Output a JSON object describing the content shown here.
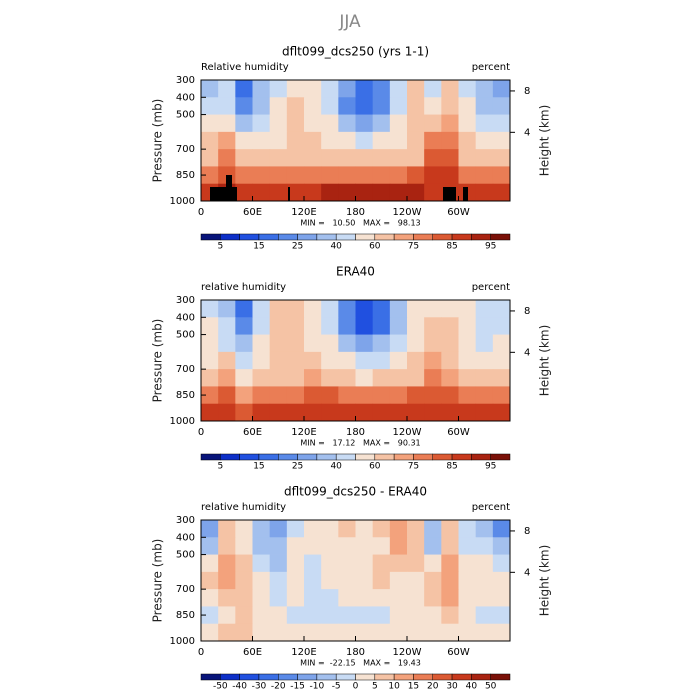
{
  "title": "JJA",
  "chart_data": [
    {
      "type": "contour",
      "title": "dflt099_dcs250 (yrs 1-1)",
      "subtitle_left": "Relative humidity",
      "subtitle_right": "percent",
      "ylabel": "Pressure (mb)",
      "y2label": "Height (km)",
      "stats": "MIN =   10.50   MAX =   98.13",
      "xlim": [
        0,
        360
      ],
      "xticks": [
        0,
        {
          "value": 60,
          "label": "60E"
        },
        {
          "value": 120,
          "label": "120E"
        },
        180,
        {
          "value": 240,
          "label": "120W"
        },
        {
          "value": 300,
          "label": "60W"
        }
      ],
      "ylim": [
        1000,
        300
      ],
      "yticks": [
        300,
        400,
        500,
        700,
        850,
        1000
      ],
      "y2ticks": [
        4,
        8
      ],
      "x": [
        10,
        30,
        50,
        70,
        90,
        110,
        130,
        150,
        170,
        190,
        210,
        230,
        250,
        270,
        290,
        310,
        330,
        350
      ],
      "y": [
        350,
        450,
        550,
        650,
        750,
        850,
        950
      ],
      "z": [
        [
          30,
          40,
          15,
          30,
          45,
          55,
          55,
          45,
          25,
          15,
          20,
          40,
          60,
          45,
          60,
          45,
          30,
          25
        ],
        [
          40,
          45,
          20,
          35,
          50,
          60,
          55,
          45,
          20,
          15,
          20,
          45,
          60,
          50,
          65,
          50,
          35,
          35
        ],
        [
          50,
          55,
          35,
          45,
          50,
          60,
          55,
          50,
          35,
          25,
          35,
          50,
          60,
          65,
          70,
          55,
          45,
          45
        ],
        [
          60,
          70,
          50,
          55,
          55,
          60,
          60,
          55,
          50,
          45,
          50,
          55,
          60,
          75,
          75,
          60,
          55,
          55
        ],
        [
          65,
          78,
          65,
          62,
          62,
          65,
          65,
          62,
          60,
          60,
          60,
          62,
          65,
          80,
          80,
          65,
          62,
          62
        ],
        [
          75,
          82,
          75,
          75,
          75,
          75,
          78,
          78,
          77,
          77,
          77,
          78,
          80,
          85,
          85,
          78,
          75,
          75
        ],
        [
          85,
          90,
          85,
          85,
          85,
          87,
          88,
          90,
          90,
          90,
          90,
          90,
          90,
          88,
          88,
          85,
          85,
          85
        ]
      ],
      "levels": [
        5,
        10,
        15,
        20,
        25,
        30,
        40,
        50,
        60,
        70,
        75,
        80,
        85,
        90,
        95
      ],
      "level_ticks": [
        5,
        15,
        25,
        40,
        60,
        75,
        85,
        95
      ],
      "colors": [
        "#08147a",
        "#0d2fc8",
        "#2050e0",
        "#3a6fe6",
        "#5a8ae8",
        "#7ea4ea",
        "#a3c0ee",
        "#c8dbf4",
        "#f6e2d2",
        "#f5c3a5",
        "#f3a27c",
        "#ea7d55",
        "#db5a33",
        "#c8391c",
        "#a92311",
        "#7a1007"
      ],
      "topography": true
    },
    {
      "type": "contour",
      "title": "ERA40",
      "subtitle_left": "relative humidity",
      "subtitle_right": "percent",
      "ylabel": "Pressure (mb)",
      "y2label": "Height (km)",
      "stats": "MIN =   17.12   MAX =   90.31",
      "xlim": [
        0,
        360
      ],
      "xticks": [
        0,
        {
          "value": 60,
          "label": "60E"
        },
        {
          "value": 120,
          "label": "120E"
        },
        180,
        {
          "value": 240,
          "label": "120W"
        },
        {
          "value": 300,
          "label": "60W"
        }
      ],
      "ylim": [
        1000,
        300
      ],
      "yticks": [
        300,
        400,
        500,
        700,
        850,
        1000
      ],
      "y2ticks": [
        4,
        8
      ],
      "x": [
        10,
        30,
        50,
        70,
        90,
        110,
        130,
        150,
        170,
        190,
        210,
        230,
        250,
        270,
        290,
        310,
        330,
        350
      ],
      "y": [
        350,
        450,
        550,
        650,
        750,
        850,
        950
      ],
      "z": [
        [
          45,
          35,
          15,
          40,
          60,
          60,
          55,
          45,
          20,
          12,
          15,
          30,
          55,
          55,
          55,
          50,
          40,
          45
        ],
        [
          50,
          40,
          20,
          45,
          60,
          60,
          55,
          45,
          20,
          12,
          18,
          35,
          55,
          60,
          60,
          55,
          40,
          45
        ],
        [
          50,
          45,
          30,
          50,
          60,
          60,
          58,
          50,
          35,
          25,
          30,
          45,
          55,
          65,
          60,
          55,
          45,
          50
        ],
        [
          55,
          60,
          45,
          55,
          60,
          60,
          62,
          55,
          50,
          45,
          45,
          55,
          60,
          70,
          62,
          58,
          55,
          55
        ],
        [
          65,
          72,
          58,
          62,
          65,
          65,
          70,
          65,
          60,
          58,
          60,
          62,
          65,
          75,
          70,
          65,
          62,
          62
        ],
        [
          78,
          80,
          70,
          75,
          75,
          78,
          80,
          80,
          78,
          78,
          78,
          78,
          80,
          82,
          80,
          78,
          78,
          78
        ],
        [
          85,
          85,
          80,
          85,
          85,
          87,
          88,
          88,
          88,
          88,
          88,
          87,
          87,
          85,
          85,
          85,
          85,
          85
        ]
      ],
      "levels": [
        5,
        10,
        15,
        20,
        25,
        30,
        40,
        50,
        60,
        70,
        75,
        80,
        85,
        90,
        95
      ],
      "level_ticks": [
        5,
        15,
        25,
        40,
        60,
        75,
        85,
        95
      ],
      "colors": [
        "#08147a",
        "#0d2fc8",
        "#2050e0",
        "#3a6fe6",
        "#5a8ae8",
        "#7ea4ea",
        "#a3c0ee",
        "#c8dbf4",
        "#f6e2d2",
        "#f5c3a5",
        "#f3a27c",
        "#ea7d55",
        "#db5a33",
        "#c8391c",
        "#a92311",
        "#7a1007"
      ],
      "topography": false
    },
    {
      "type": "contour",
      "title": "dflt099_dcs250 - ERA40",
      "subtitle_left": "relative humidity",
      "subtitle_right": "percent",
      "ylabel": "Pressure (mb)",
      "y2label": "Height (km)",
      "stats": "MIN =  -22.15   MAX =   19.43",
      "xlim": [
        0,
        360
      ],
      "xticks": [
        0,
        {
          "value": 60,
          "label": "60E"
        },
        {
          "value": 120,
          "label": "120E"
        },
        180,
        {
          "value": 240,
          "label": "120W"
        },
        {
          "value": 300,
          "label": "60W"
        }
      ],
      "ylim": [
        1000,
        300
      ],
      "yticks": [
        300,
        400,
        500,
        700,
        850,
        1000
      ],
      "y2ticks": [
        4,
        8
      ],
      "x": [
        10,
        30,
        50,
        70,
        90,
        110,
        130,
        150,
        170,
        190,
        210,
        230,
        250,
        270,
        290,
        310,
        330,
        350
      ],
      "y": [
        350,
        450,
        550,
        650,
        750,
        850,
        950
      ],
      "z": [
        [
          -15,
          5,
          0,
          -10,
          -15,
          -5,
          0,
          0,
          5,
          3,
          5,
          10,
          5,
          -10,
          5,
          -5,
          -10,
          -20
        ],
        [
          -10,
          5,
          0,
          -10,
          -10,
          0,
          0,
          0,
          0,
          3,
          2,
          10,
          5,
          -10,
          5,
          -5,
          -5,
          -10
        ],
        [
          0,
          10,
          5,
          -5,
          -10,
          0,
          -3,
          0,
          0,
          0,
          5,
          5,
          5,
          0,
          10,
          0,
          0,
          -5
        ],
        [
          5,
          10,
          5,
          0,
          -5,
          0,
          -2,
          0,
          0,
          0,
          5,
          0,
          0,
          5,
          13,
          2,
          0,
          0
        ],
        [
          0,
          6,
          7,
          0,
          -3,
          0,
          -5,
          -3,
          0,
          2,
          0,
          0,
          0,
          5,
          10,
          0,
          0,
          0
        ],
        [
          -3,
          2,
          5,
          0,
          0,
          -3,
          -2,
          -2,
          -1,
          -1,
          -1,
          0,
          0,
          3,
          5,
          0,
          -3,
          -3
        ],
        [
          0,
          5,
          5,
          0,
          0,
          0,
          0,
          2,
          2,
          2,
          2,
          3,
          3,
          3,
          3,
          0,
          0,
          0
        ]
      ],
      "levels": [
        -50,
        -40,
        -30,
        -20,
        -15,
        -10,
        -5,
        0,
        5,
        10,
        15,
        20,
        30,
        40,
        50
      ],
      "level_ticks": [
        -50,
        -40,
        -30,
        -20,
        -15,
        -10,
        -5,
        0,
        5,
        10,
        15,
        20,
        30,
        40,
        50
      ],
      "colors": [
        "#08147a",
        "#0d2fc8",
        "#2050e0",
        "#3a6fe6",
        "#5a8ae8",
        "#7ea4ea",
        "#a3c0ee",
        "#c8dbf4",
        "#f6e2d2",
        "#f5c3a5",
        "#f3a27c",
        "#ea7d55",
        "#db5a33",
        "#c8391c",
        "#a92311",
        "#7a1007"
      ],
      "topography": true
    }
  ]
}
